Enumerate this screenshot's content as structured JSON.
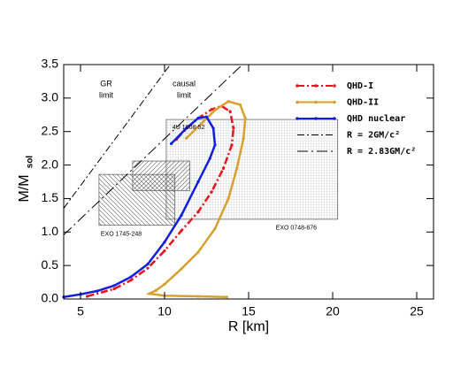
{
  "chart_data": {
    "type": "line",
    "xlabel": "R [km]",
    "ylabel": "M/M",
    "ylabel_sub": "sol",
    "xlim": [
      4,
      26
    ],
    "ylim": [
      0,
      3.5
    ],
    "xticks": [
      5,
      10,
      15,
      20,
      25
    ],
    "yticks": [
      {
        "value": 0,
        "label": "0.0"
      },
      0.5,
      {
        "value": 1,
        "label": "1.0"
      },
      1.5,
      {
        "value": 2,
        "label": "2.0"
      },
      2.5,
      {
        "value": 3,
        "label": "3.0"
      },
      3.5
    ],
    "legend": "upper right",
    "series": [
      {
        "name": "QHD-I",
        "color": "#e8141c",
        "dash": "dashdot",
        "markers": true,
        "x": [
          5.4,
          7,
          8,
          9,
          10,
          11,
          12,
          12.8,
          13.5,
          14,
          14.1,
          13.9,
          13.4,
          12.8,
          12,
          11.2,
          10.7
        ],
        "values": [
          0.04,
          0.15,
          0.28,
          0.46,
          0.72,
          1.02,
          1.3,
          1.6,
          1.95,
          2.3,
          2.55,
          2.8,
          2.88,
          2.83,
          2.7,
          2.52,
          2.38
        ]
      },
      {
        "name": "QHD-II",
        "color": "#d9a030",
        "dash": "solid",
        "markers": true,
        "x": [
          13.7,
          12,
          10,
          9.1,
          9.5,
          10,
          11,
          12,
          13,
          13.8,
          14.3,
          14.7,
          14.8,
          14.5,
          13.8,
          13,
          12.2,
          11.3
        ],
        "values": [
          0.03,
          0.04,
          0.05,
          0.08,
          0.13,
          0.22,
          0.45,
          0.7,
          1.05,
          1.5,
          1.95,
          2.4,
          2.7,
          2.9,
          2.95,
          2.82,
          2.62,
          2.4
        ]
      },
      {
        "name": "QHD nuclear",
        "color": "#1020e0",
        "dash": "solid",
        "markers": true,
        "x": [
          4,
          5,
          6,
          7,
          8,
          9,
          10,
          11,
          12,
          12.7,
          13,
          12.9,
          12.5,
          12,
          11.3,
          10.4
        ],
        "values": [
          0.03,
          0.07,
          0.12,
          0.2,
          0.33,
          0.52,
          0.85,
          1.25,
          1.75,
          2.1,
          2.3,
          2.55,
          2.72,
          2.7,
          2.55,
          2.32
        ]
      },
      {
        "name": "R = 2GM/c²",
        "color": "#000000",
        "dash": "dashdot",
        "markers": false,
        "x": [
          4,
          10.34
        ],
        "values": [
          1.354,
          3.5
        ]
      },
      {
        "name": "R = 2.83GM/c²",
        "color": "#000000",
        "dash": "dashdotlong",
        "markers": false,
        "x": [
          4,
          14.63
        ],
        "values": [
          0.957,
          3.5
        ]
      }
    ],
    "regions": [
      {
        "label": "EXO 0748-676",
        "xlim": [
          10.1,
          20.3
        ],
        "ylim": [
          1.19,
          2.68
        ],
        "pattern": "grid"
      },
      {
        "label": "EXO 1745-248",
        "xlim": [
          6.1,
          10.6
        ],
        "ylim": [
          1.1,
          1.86
        ],
        "pattern": "hatch-left"
      },
      {
        "label": "4U 1608-52",
        "xlim": [
          8.1,
          11.5
        ],
        "ylim": [
          1.62,
          2.06
        ],
        "pattern": "hatch-right"
      }
    ],
    "annotations": [
      "GR",
      "limit",
      "causal",
      "limit"
    ]
  }
}
